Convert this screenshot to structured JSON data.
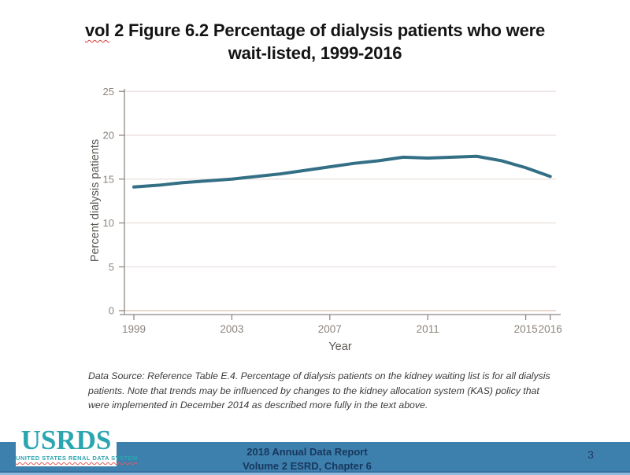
{
  "title": {
    "misspelled_word": "vol",
    "rest_line1": " 2 Figure 6.2 Percentage of dialysis patients who were",
    "line2": "wait-listed, 1999-2016"
  },
  "chart_data": {
    "type": "line",
    "title": "vol 2 Figure 6.2 Percentage of dialysis patients who were wait-listed, 1999-2016",
    "xlabel": "Year",
    "ylabel": "Percent dialysis patients",
    "x": [
      1999,
      2000,
      2001,
      2002,
      2003,
      2004,
      2005,
      2006,
      2007,
      2008,
      2009,
      2010,
      2011,
      2012,
      2013,
      2014,
      2015,
      2016
    ],
    "values": [
      14.1,
      14.3,
      14.6,
      14.8,
      15.0,
      15.3,
      15.6,
      16.0,
      16.4,
      16.8,
      17.1,
      17.5,
      17.4,
      17.5,
      17.6,
      17.1,
      16.3,
      15.3
    ],
    "xticks": [
      1999,
      2003,
      2007,
      2011,
      2015,
      2016
    ],
    "yticks": [
      0,
      5,
      10,
      15,
      20,
      25
    ],
    "ylim": [
      0,
      25
    ],
    "grid": true,
    "legend": "none",
    "colors": {
      "line": "#336f85",
      "grid": "#e8dfdc",
      "zero_line": "#d9c0b4",
      "axis": "#8f8883",
      "tick_label": "#8c847c"
    }
  },
  "footnote": {
    "lines": [
      "Data Source: Reference Table E.4. Percentage of dialysis patients on the kidney waiting list is for all dialysis",
      "patients. Note that trends may be influenced by changes to the kidney allocation system (KAS) policy that",
      "were implemented in December 2014 as described more fully in the text above."
    ]
  },
  "footer": {
    "logo": {
      "word": "USRDS",
      "subtitle": "UNITED STATES RENAL DATA SYSTEM"
    },
    "line1": "2018 Annual Data Report",
    "line2": "Volume 2 ESRD, Chapter 6",
    "page": "3",
    "band_color": "#3e80ad"
  }
}
